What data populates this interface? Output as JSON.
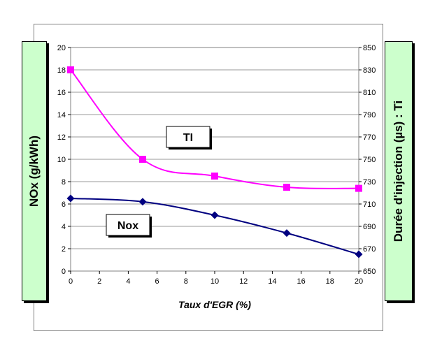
{
  "chart_data": {
    "type": "line",
    "xlabel": "Taux d'EGR (%)",
    "ylabel_left": "NOx (g/kWh)",
    "ylabel_right": "Durée d'injection (µs) : Ti",
    "x_ticks": [
      "0",
      "2",
      "4",
      "6",
      "8",
      "10",
      "12",
      "14",
      "16",
      "18",
      "20"
    ],
    "y_left_ticks": [
      "0",
      "2",
      "4",
      "6",
      "8",
      "10",
      "12",
      "14",
      "16",
      "18",
      "20"
    ],
    "y_right_ticks": [
      "650",
      "670",
      "690",
      "710",
      "730",
      "750",
      "770",
      "790",
      "810",
      "830",
      "850"
    ],
    "xlim": [
      0,
      20
    ],
    "ylim_left": [
      0,
      20
    ],
    "ylim_right": [
      650,
      850
    ],
    "grid": "horizontal",
    "series": [
      {
        "name": "Nox",
        "axis": "left",
        "color": "#000080",
        "marker": "diamond",
        "x": [
          0,
          5,
          10,
          15,
          20
        ],
        "y": [
          6.5,
          6.2,
          5.0,
          3.4,
          1.5
        ]
      },
      {
        "name": "TI",
        "axis": "right",
        "color": "#ff00ff",
        "marker": "square",
        "x": [
          0,
          5,
          10,
          15,
          20
        ],
        "y": [
          830,
          750,
          735,
          725,
          724
        ]
      }
    ],
    "annotations": [
      "TI",
      "Nox"
    ]
  }
}
